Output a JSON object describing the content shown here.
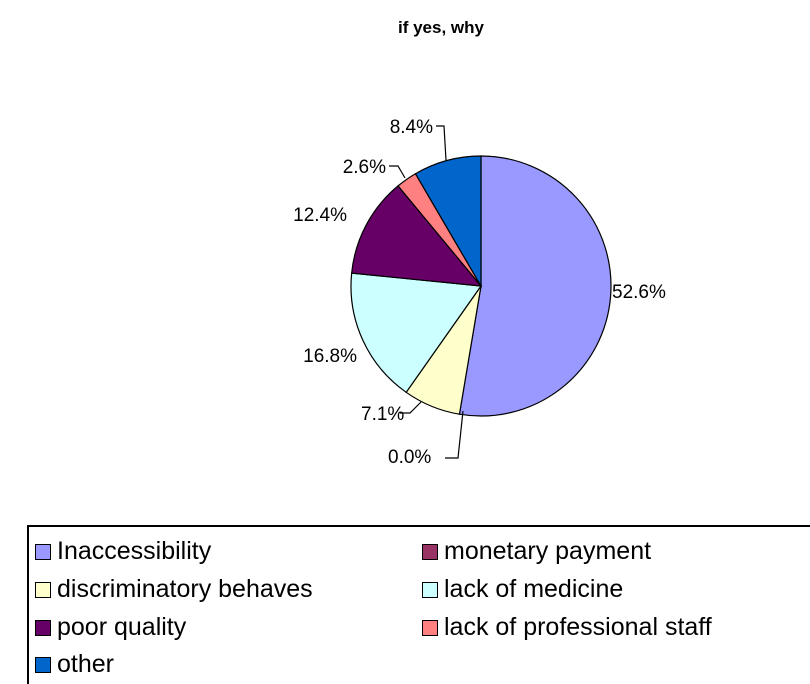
{
  "chart_data": {
    "type": "pie",
    "title": "if yes, why",
    "slices": [
      {
        "label": "Inaccessibility",
        "value": 52.6,
        "value_label": "52.6%",
        "color": "#9999ff"
      },
      {
        "label": "monetary payment",
        "value": 0.0,
        "value_label": "0.0%",
        "color": "#993366"
      },
      {
        "label": "discriminatory behaves",
        "value": 7.1,
        "value_label": "7.1%",
        "color": "#ffffcc"
      },
      {
        "label": "lack of medicine",
        "value": 16.8,
        "value_label": "16.8%",
        "color": "#ccffff"
      },
      {
        "label": "poor quality",
        "value": 12.4,
        "value_label": "12.4%",
        "color": "#660066"
      },
      {
        "label": "lack of professional staff",
        "value": 2.6,
        "value_label": "2.6%",
        "color": "#ff8080"
      },
      {
        "label": "other",
        "value": 8.4,
        "value_label": "8.4%",
        "color": "#0066cc"
      }
    ],
    "legend_position": "bottom"
  }
}
